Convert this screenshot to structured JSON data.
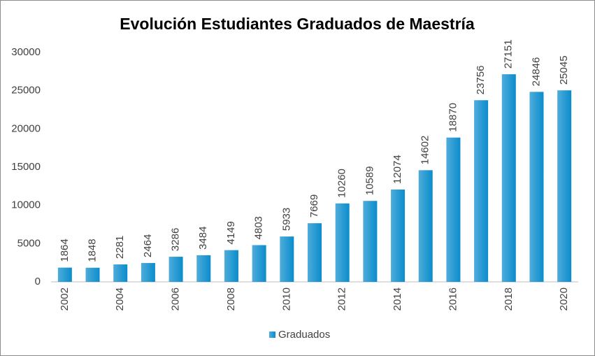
{
  "chart_data": {
    "type": "bar",
    "title": "Evolución Estudiantes Graduados de Maestría",
    "categories": [
      "2002",
      null,
      "2004",
      null,
      "2006",
      null,
      "2008",
      null,
      "2010",
      null,
      "2012",
      null,
      "2014",
      null,
      "2016",
      null,
      "2018",
      null,
      "2020"
    ],
    "series": [
      {
        "name": "Graduados",
        "color": "#0a8ccc",
        "values": [
          1864,
          1848,
          2281,
          2464,
          3286,
          3484,
          4149,
          4803,
          5933,
          7669,
          10260,
          10589,
          12074,
          14602,
          18870,
          23756,
          27151,
          24846,
          25045
        ]
      }
    ],
    "ylim": [
      0,
      30000
    ],
    "yticks": [
      0,
      5000,
      10000,
      15000,
      20000,
      25000,
      30000
    ],
    "grid": false,
    "legend": "bottom"
  }
}
